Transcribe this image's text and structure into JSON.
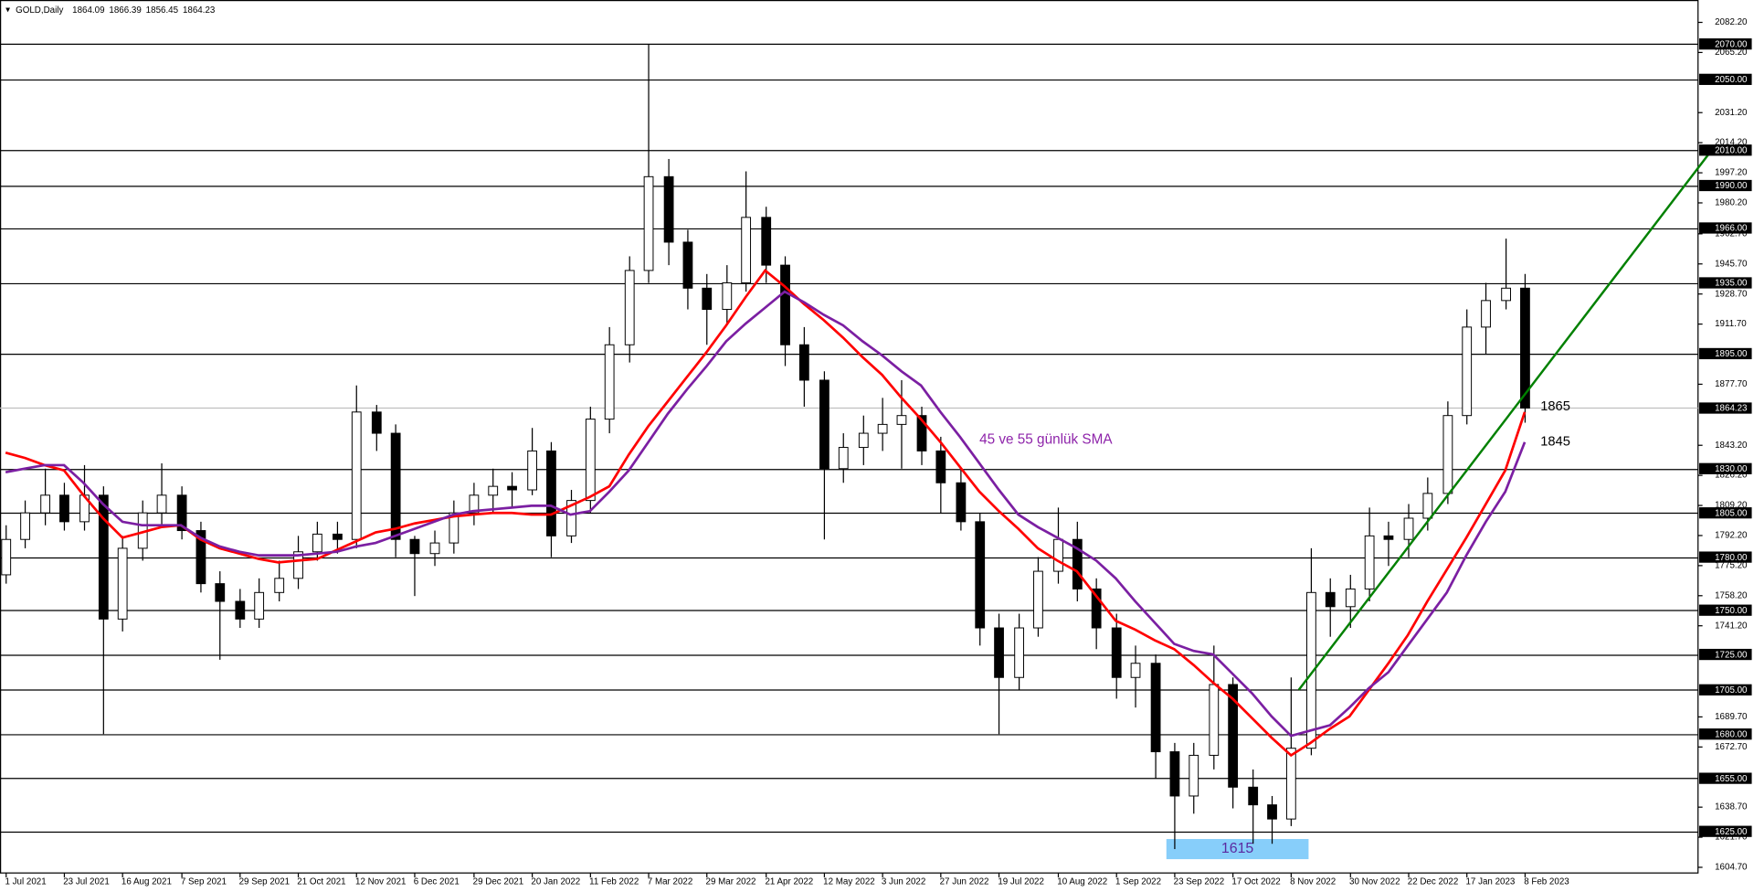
{
  "chart_data": {
    "type": "candlestick",
    "title": "GOLD,Daily",
    "last_ohlc": [
      1864.09,
      1866.39,
      1856.45,
      1864.23
    ],
    "categories": [
      "1 Jul 2021",
      null,
      null,
      "23 Jul 2021",
      null,
      null,
      "16 Aug 2021",
      null,
      null,
      "7 Sep 2021",
      null,
      null,
      "29 Sep 2021",
      null,
      null,
      "21 Oct 2021",
      null,
      null,
      "12 Nov 2021",
      null,
      null,
      "6 Dec 2021",
      null,
      null,
      "29 Dec 2021",
      null,
      null,
      "20 Jan 2022",
      null,
      null,
      "11 Feb 2022",
      null,
      null,
      "7 Mar 2022",
      null,
      null,
      "29 Mar 2022",
      null,
      null,
      "21 Apr 2022",
      null,
      null,
      "12 May 2022",
      null,
      null,
      "3 Jun 2022",
      null,
      null,
      "27 Jun 2022",
      null,
      null,
      "19 Jul 2022",
      null,
      null,
      "10 Aug 2022",
      null,
      null,
      "1 Sep 2022",
      null,
      null,
      "23 Sep 2022",
      null,
      null,
      "17 Oct 2022",
      null,
      null,
      "8 Nov 2022",
      null,
      null,
      "30 Nov 2022",
      null,
      null,
      "22 Dec 2022",
      null,
      null,
      "17 Jan 2023",
      null,
      null,
      "8 Feb 2023"
    ],
    "open": [
      1770,
      1790,
      1805,
      1815,
      1800,
      1815,
      1745,
      1785,
      1805,
      1815,
      1795,
      1765,
      1755,
      1745,
      1760,
      1768,
      1783,
      1793,
      1790,
      1862,
      1850,
      1790,
      1782,
      1788,
      1805,
      1815,
      1820,
      1818,
      1840,
      1792,
      1812,
      1858,
      1900,
      1942,
      1995,
      1958,
      1932,
      1920,
      1935,
      1972,
      1945,
      1900,
      1880,
      1830,
      1842,
      1850,
      1855,
      1860,
      1840,
      1822,
      1800,
      1740,
      1712,
      1740,
      1772,
      1790,
      1762,
      1740,
      1712,
      1720,
      1670,
      1645,
      1668,
      1708,
      1650,
      1640,
      1632,
      1672,
      1760,
      1752,
      1762,
      1792,
      1790,
      1802,
      1816,
      1860,
      1910,
      1925,
      1932
    ],
    "high": [
      1798,
      1812,
      1830,
      1822,
      1832,
      1820,
      1792,
      1812,
      1833,
      1820,
      1800,
      1772,
      1762,
      1768,
      1778,
      1792,
      1800,
      1800,
      1877,
      1866,
      1855,
      1792,
      1795,
      1812,
      1822,
      1830,
      1828,
      1853,
      1845,
      1818,
      1865,
      1910,
      1950,
      2070,
      2005,
      1965,
      1940,
      1945,
      1998,
      1978,
      1950,
      1910,
      1885,
      1850,
      1860,
      1870,
      1880,
      1865,
      1848,
      1830,
      1805,
      1748,
      1748,
      1780,
      1808,
      1800,
      1768,
      1748,
      1730,
      1725,
      1675,
      1675,
      1730,
      1712,
      1660,
      1645,
      1712,
      1785,
      1768,
      1770,
      1808,
      1800,
      1810,
      1825,
      1868,
      1920,
      1935,
      1960,
      1940
    ],
    "low": [
      1765,
      1785,
      1798,
      1795,
      1795,
      1680,
      1738,
      1778,
      1798,
      1790,
      1760,
      1722,
      1740,
      1740,
      1755,
      1762,
      1778,
      1782,
      1785,
      1840,
      1780,
      1758,
      1775,
      1782,
      1798,
      1805,
      1808,
      1815,
      1780,
      1788,
      1805,
      1850,
      1890,
      1935,
      1945,
      1920,
      1900,
      1912,
      1930,
      1935,
      1888,
      1865,
      1790,
      1822,
      1832,
      1840,
      1830,
      1832,
      1805,
      1795,
      1730,
      1680,
      1705,
      1735,
      1765,
      1755,
      1728,
      1700,
      1695,
      1655,
      1615,
      1635,
      1660,
      1638,
      1618,
      1618,
      1628,
      1668,
      1735,
      1740,
      1755,
      1775,
      1780,
      1795,
      1810,
      1855,
      1895,
      1920,
      1856
    ],
    "close": [
      1790,
      1805,
      1815,
      1800,
      1815,
      1745,
      1785,
      1805,
      1815,
      1795,
      1765,
      1755,
      1745,
      1760,
      1768,
      1783,
      1793,
      1790,
      1862,
      1850,
      1790,
      1782,
      1788,
      1805,
      1815,
      1820,
      1818,
      1840,
      1792,
      1812,
      1858,
      1900,
      1942,
      1995,
      1958,
      1932,
      1920,
      1935,
      1972,
      1945,
      1900,
      1880,
      1830,
      1842,
      1850,
      1855,
      1860,
      1840,
      1822,
      1800,
      1740,
      1712,
      1740,
      1772,
      1790,
      1762,
      1740,
      1712,
      1720,
      1670,
      1645,
      1668,
      1708,
      1650,
      1640,
      1632,
      1672,
      1760,
      1752,
      1762,
      1792,
      1790,
      1802,
      1816,
      1860,
      1910,
      1925,
      1932,
      1864.23
    ],
    "up_color": "#ffffff",
    "down_color": "#000000",
    "ylim": [
      1601.5,
      2094.85
    ],
    "yticks": [
      {
        "value": 2082.2,
        "label": "2082.20"
      },
      {
        "value": 2065.2,
        "label": "2065.20"
      },
      {
        "value": 2031.2,
        "label": "2031.20"
      },
      {
        "value": 2014.2,
        "label": "2014.20"
      },
      {
        "value": 1997.2,
        "label": "1997.20"
      },
      {
        "value": 1980.2,
        "label": "1980.20"
      },
      {
        "value": 1962.7,
        "label": "1962.70"
      },
      {
        "value": 1945.7,
        "label": "1945.70"
      },
      {
        "value": 1928.7,
        "label": "1928.70"
      },
      {
        "value": 1911.7,
        "label": "1911.70"
      },
      {
        "value": 1877.7,
        "label": "1877.70"
      },
      {
        "value": 1843.2,
        "label": "1843.20"
      },
      {
        "value": 1826.2,
        "label": "1826.20"
      },
      {
        "value": 1809.2,
        "label": "1809.20"
      },
      {
        "value": 1792.2,
        "label": "1792.20"
      },
      {
        "value": 1775.2,
        "label": "1775.20"
      },
      {
        "value": 1758.2,
        "label": "1758.20"
      },
      {
        "value": 1741.2,
        "label": "1741.20"
      },
      {
        "value": 1689.7,
        "label": "1689.70"
      },
      {
        "value": 1672.7,
        "label": "1672.70"
      },
      {
        "value": 1638.7,
        "label": "1638.70"
      },
      {
        "value": 1621.7,
        "label": "1621.70"
      },
      {
        "value": 1604.7,
        "label": "1604.70"
      }
    ],
    "levels": [
      {
        "value": 2070,
        "label": "2070.00"
      },
      {
        "value": 2050,
        "label": "2050.00"
      },
      {
        "value": 2010,
        "label": "2010.00"
      },
      {
        "value": 1990,
        "label": "1990.00"
      },
      {
        "value": 1966,
        "label": "1966.00"
      },
      {
        "value": 1935,
        "label": "1935.00"
      },
      {
        "value": 1895,
        "label": "1895.00"
      },
      {
        "value": 1830,
        "label": "1830.00"
      },
      {
        "value": 1805,
        "label": "1805.00"
      },
      {
        "value": 1780,
        "label": "1780.00"
      },
      {
        "value": 1750,
        "label": "1750.00"
      },
      {
        "value": 1725,
        "label": "1725.00"
      },
      {
        "value": 1705,
        "label": "1705.00"
      },
      {
        "value": 1680,
        "label": "1680.00"
      },
      {
        "value": 1655,
        "label": "1655.00"
      },
      {
        "value": 1625,
        "label": "1625.00"
      }
    ],
    "current_price": {
      "value": 1864.23,
      "label": "1864.23"
    },
    "moving_averages": [
      {
        "color": "#ff0000",
        "label": 1865,
        "values": [
          1839,
          1836,
          1832,
          1829,
          1815,
          1802,
          1791,
          1794,
          1797,
          1798,
          1790,
          1785,
          1782,
          1779,
          1777,
          1778,
          1779,
          1784,
          1789,
          1794,
          1796,
          1799,
          1801,
          1803,
          1804,
          1805,
          1805,
          1804,
          1804,
          1809,
          1814,
          1820,
          1838,
          1854,
          1868,
          1882,
          1896,
          1911,
          1927,
          1942,
          1933,
          1923,
          1914,
          1904,
          1893,
          1883,
          1870,
          1858,
          1845,
          1831,
          1817,
          1806,
          1796,
          1785,
          1778,
          1772,
          1758,
          1744,
          1739,
          1733,
          1728,
          1719,
          1709,
          1700,
          1689,
          1678,
          1668,
          1675,
          1683,
          1690,
          1705,
          1720,
          1736,
          1755,
          1773,
          1791,
          1810,
          1829,
          1862
        ]
      },
      {
        "color": "#7b1fa2",
        "label": 1845,
        "values": [
          1828,
          1830,
          1832,
          1832,
          1822,
          1810,
          1800,
          1798,
          1798,
          1798,
          1791,
          1786,
          1783,
          1781,
          1781,
          1781,
          1782,
          1783,
          1786,
          1788,
          1792,
          1796,
          1800,
          1804,
          1806,
          1807,
          1808,
          1809,
          1809,
          1804,
          1806,
          1817,
          1829,
          1845,
          1861,
          1875,
          1888,
          1902,
          1912,
          1921,
          1930,
          1924,
          1917,
          1911,
          1902,
          1894,
          1885,
          1877,
          1862,
          1848,
          1833,
          1818,
          1804,
          1797,
          1791,
          1785,
          1778,
          1768,
          1755,
          1743,
          1731,
          1727,
          1725,
          1714,
          1703,
          1690,
          1679,
          1682,
          1685,
          1695,
          1706,
          1715,
          1730,
          1745,
          1760,
          1781,
          1800,
          1817,
          1845
        ]
      }
    ],
    "annotation": {
      "text": "45 ve 55 günlük SMA",
      "color": "#8e24aa"
    },
    "trendline": {
      "color": "#008000",
      "from": [
        66.4,
        1705
      ],
      "to": [
        87.6,
        2010
      ]
    },
    "low_marker": {
      "value": 1615,
      "color": "#87cefa"
    }
  }
}
